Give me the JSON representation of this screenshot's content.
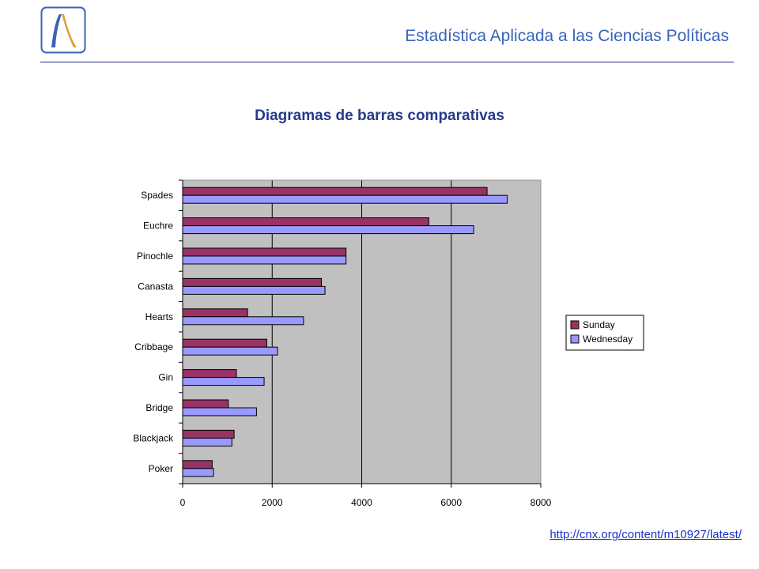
{
  "header": {
    "title": "Estadística Aplicada a las Ciencias Políticas",
    "logo_icon": "stylized-peak-logo-icon"
  },
  "slide": {
    "title": "Diagramas de barras comparativas"
  },
  "chart_data": {
    "type": "bar",
    "orientation": "horizontal",
    "categories": [
      "Spades",
      "Euchre",
      "Pinochle",
      "Canasta",
      "Hearts",
      "Cribbage",
      "Gin",
      "Bridge",
      "Blackjack",
      "Poker"
    ],
    "series": [
      {
        "name": "Sunday",
        "color": "#993366",
        "values": [
          6800,
          5500,
          3650,
          3100,
          1450,
          1880,
          1200,
          1020,
          1150,
          660
        ]
      },
      {
        "name": "Wednesday",
        "color": "#9999ff",
        "values": [
          7250,
          6500,
          3650,
          3180,
          2700,
          2120,
          1820,
          1650,
          1100,
          690
        ]
      }
    ],
    "xticks": [
      "0",
      "2000",
      "4000",
      "6000",
      "8000"
    ],
    "xlim": [
      0,
      8000
    ],
    "grid": true,
    "plot_background": "#c0c0c0",
    "legend_position": "right"
  },
  "footer": {
    "link_text": "http://cnx.org/content/m10927/latest/"
  }
}
